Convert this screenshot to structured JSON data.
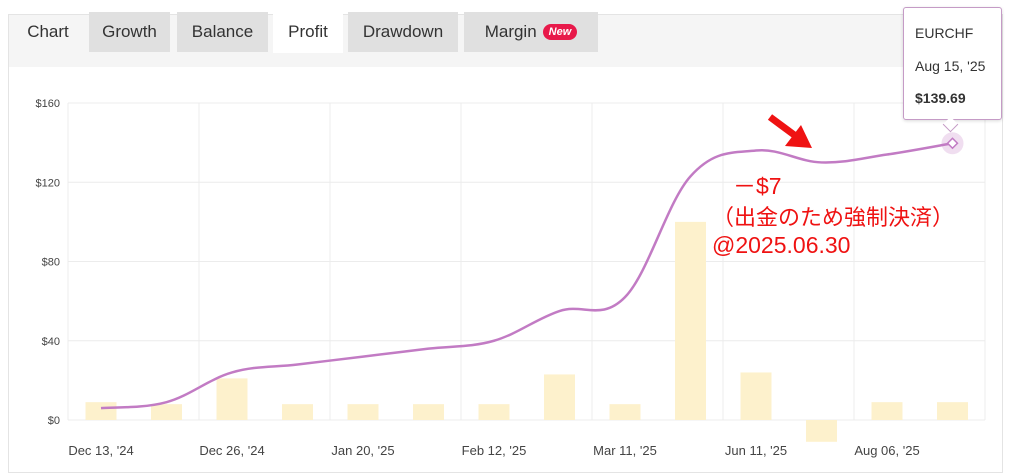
{
  "tabs": [
    {
      "label": "Chart",
      "active": false
    },
    {
      "label": "Growth",
      "active": false
    },
    {
      "label": "Balance",
      "active": false
    },
    {
      "label": "Profit",
      "active": true
    },
    {
      "label": "Drawdown",
      "active": false
    },
    {
      "label": "Margin",
      "active": false,
      "badge": "New"
    }
  ],
  "tooltip": {
    "symbol": "EURCHF",
    "date": "Aug 15, '25",
    "value": "$139.69"
  },
  "annotation": {
    "line1": "－$7",
    "line2": "（出金のため強制決済）",
    "line3": "@2025.06.30",
    "color": "#ef1212"
  },
  "colors": {
    "line": "#c27bc4",
    "bar": "#fdf1cc",
    "arrow": "#ef1212"
  },
  "chart_data": {
    "type": "line",
    "ylim": [
      0,
      160
    ],
    "y_ticks": [
      "$0",
      "$40",
      "$80",
      "$120",
      "$160"
    ],
    "y_tick_values": [
      0,
      40,
      80,
      120,
      160
    ],
    "x_tick_labels": [
      "Dec 13, '24",
      "Dec 26, '24",
      "Jan 20, '25",
      "Feb 12, '25",
      "Mar 11, '25",
      "Jun 11, '25",
      "Aug 06, '25"
    ],
    "series": [
      {
        "type": "bar",
        "values": [
          9,
          8,
          21,
          8,
          8,
          8,
          8,
          23,
          8,
          100,
          24,
          -11,
          9,
          9
        ]
      },
      {
        "type": "line",
        "values": [
          6,
          9,
          24,
          28,
          32,
          36,
          40,
          55,
          62,
          123,
          136,
          130,
          134,
          139.69
        ]
      }
    ],
    "grid": true
  }
}
